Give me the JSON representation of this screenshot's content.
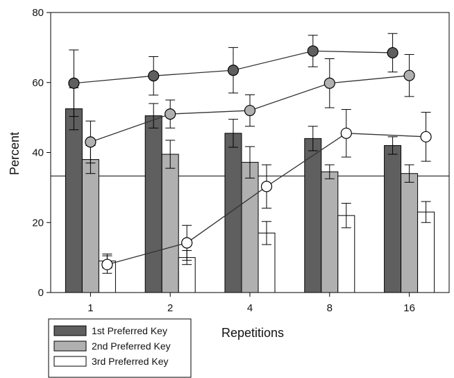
{
  "chart_data": {
    "type": "bar",
    "xlabel": "Repetitions",
    "ylabel": "Percent",
    "categories": [
      "1",
      "2",
      "4",
      "8",
      "16"
    ],
    "ylim": [
      0,
      80
    ],
    "yticks": [
      "0",
      "20",
      "40",
      "60",
      "80"
    ],
    "reference_line": 33.3,
    "legend_position": "bottom-left",
    "bar_series": [
      {
        "name": "1st Preferred Key",
        "color": "#5f5f5f",
        "values": [
          52.5,
          50.5,
          45.5,
          44,
          42
        ],
        "errors": [
          6,
          3.5,
          4,
          3.5,
          2.5
        ]
      },
      {
        "name": "2nd Preferred Key",
        "color": "#b0b0b0",
        "values": [
          38,
          39.5,
          37.2,
          34.5,
          34
        ],
        "errors": [
          4,
          4,
          4.5,
          2,
          2.5
        ]
      },
      {
        "name": "3rd Preferred Key",
        "color": "#ffffff",
        "values": [
          9,
          10,
          17,
          22,
          23
        ],
        "errors": [
          2,
          2,
          3.3,
          3.5,
          3
        ]
      }
    ],
    "line_series": [
      {
        "color": "#5f5f5f",
        "values": [
          59.8,
          61.9,
          63.5,
          69,
          68.5
        ],
        "errors": [
          9.5,
          5.5,
          6.5,
          4.5,
          5.5
        ]
      },
      {
        "color": "#b0b0b0",
        "values": [
          43,
          51,
          52,
          59.8,
          62
        ],
        "errors": [
          6,
          4,
          4.5,
          7,
          6
        ]
      },
      {
        "color": "#ffffff",
        "values": [
          8,
          14.2,
          30.3,
          45.5,
          44.5
        ],
        "errors": [
          2.5,
          5,
          6.2,
          6.8,
          7
        ]
      }
    ]
  }
}
